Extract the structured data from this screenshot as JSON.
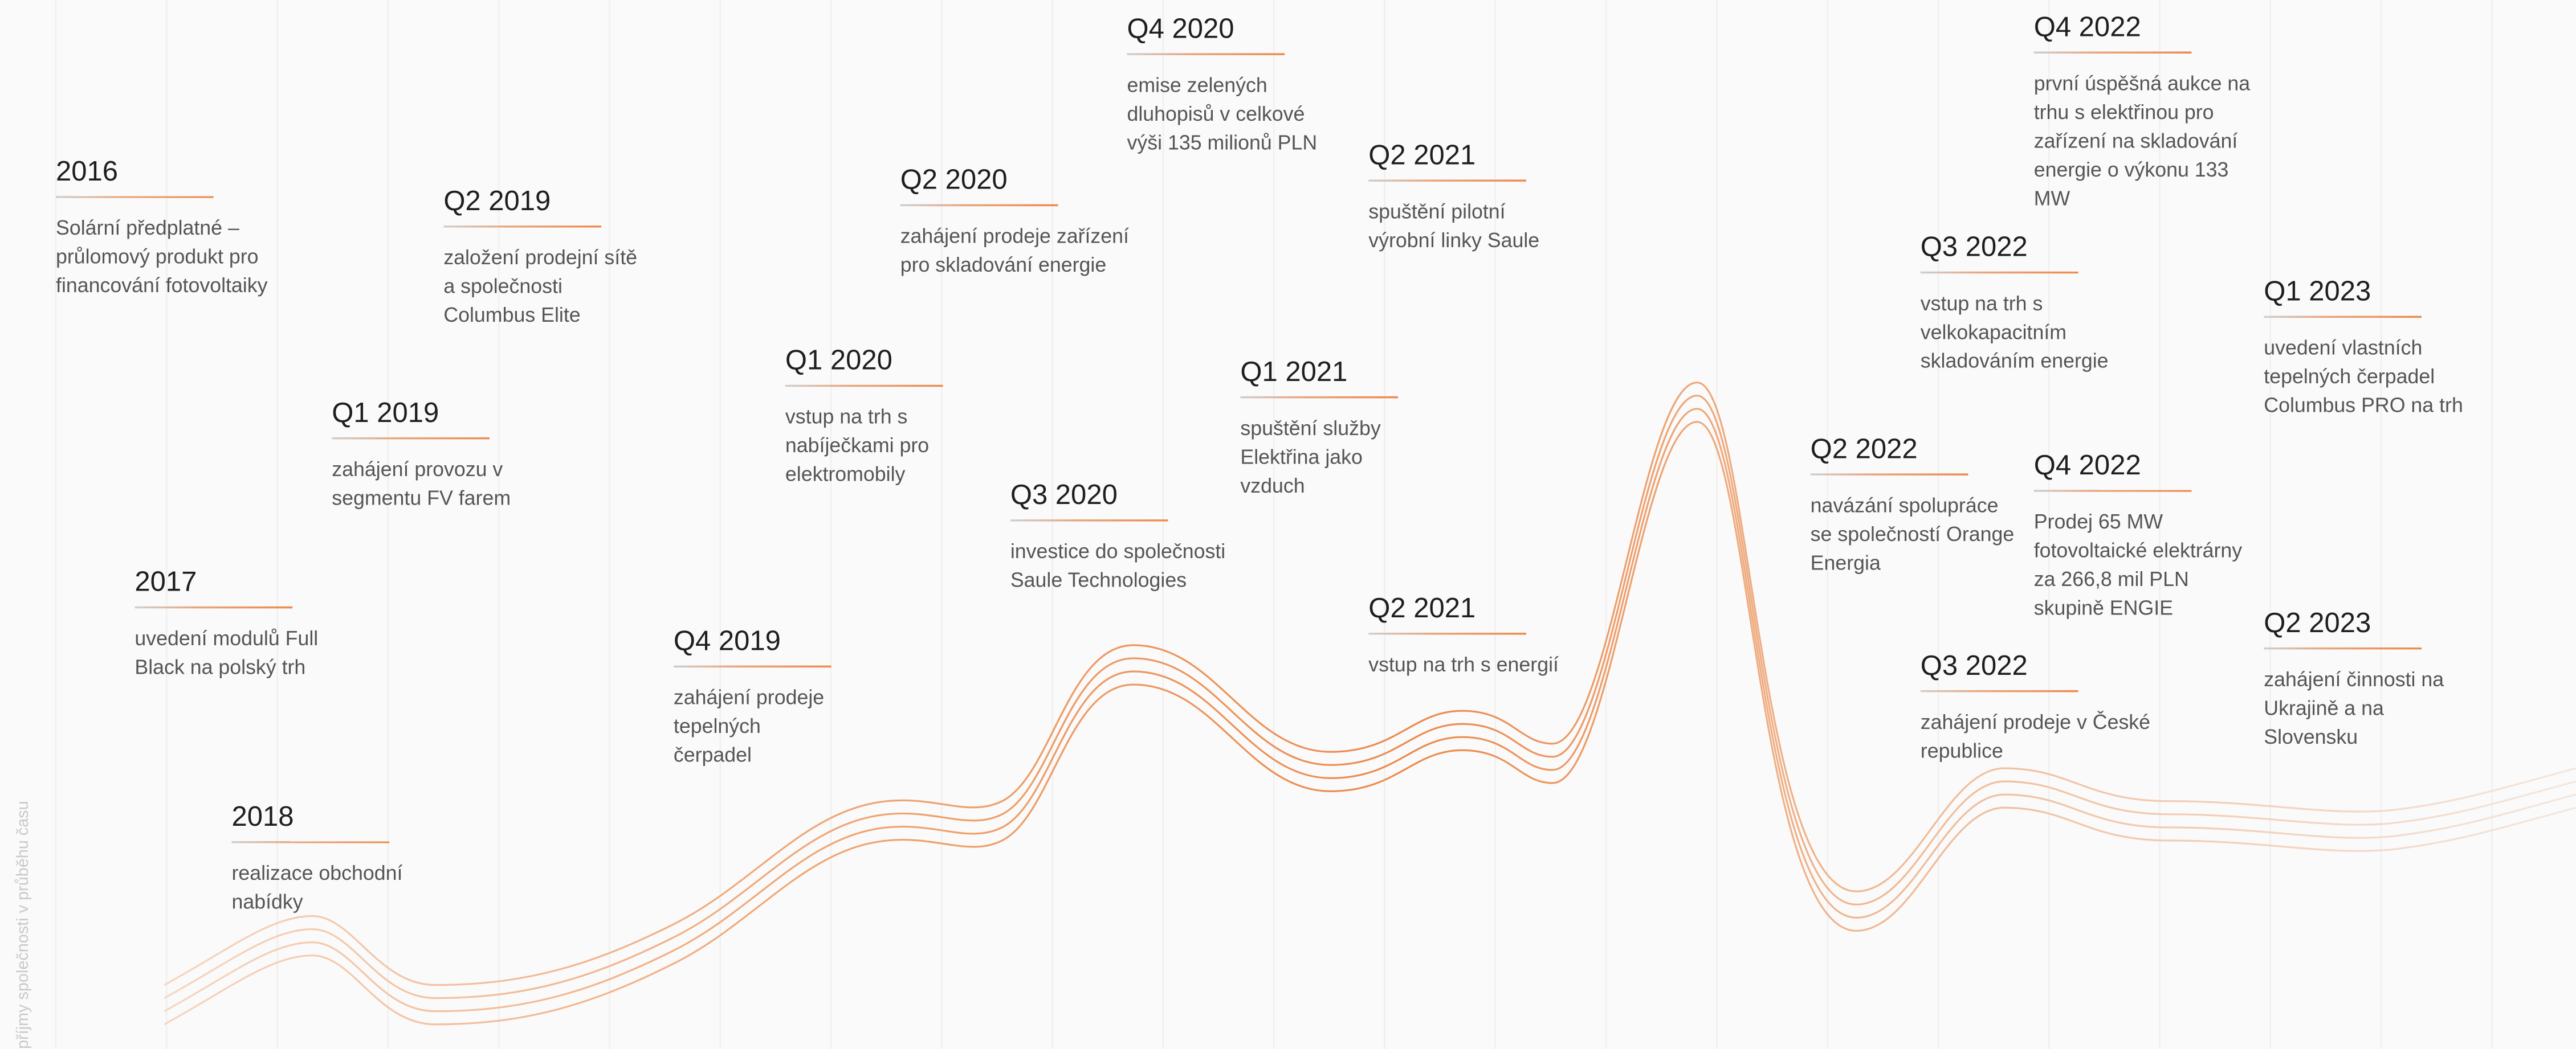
{
  "axis_label": "příjmy společnosti v průběhu času",
  "events": [
    {
      "period": "2016",
      "text": [
        "Solární předplatné –",
        "průlomový produkt pro",
        "financování fotovoltaiky"
      ]
    },
    {
      "period": "2017",
      "text": [
        "uvedení modulů Full",
        "Black na polský trh"
      ]
    },
    {
      "period": "2018",
      "text": [
        "realizace obchodní",
        "nabídky"
      ]
    },
    {
      "period": "Q1 2019",
      "text": [
        "zahájení provozu v",
        "segmentu FV farem"
      ]
    },
    {
      "period": "Q2 2019",
      "text": [
        "založení prodejní sítě",
        "a společnosti",
        "Columbus Elite"
      ]
    },
    {
      "period": "Q4 2019",
      "text": [
        "zahájení prodeje",
        "tepelných",
        "čerpadel"
      ]
    },
    {
      "period": "Q1 2020",
      "text": [
        "vstup na trh s",
        "nabíječkami pro",
        "elektromobily"
      ]
    },
    {
      "period": "Q2  2020",
      "text": [
        "zahájení prodeje zařízení",
        "pro skladování energie"
      ]
    },
    {
      "period": "Q3 2020",
      "text": [
        "investice do společnosti",
        "Saule Technologies"
      ]
    },
    {
      "period": "Q4  2020",
      "text": [
        "emise zelených",
        "dluhopisů v celkové",
        "výši 135 milionů PLN"
      ]
    },
    {
      "period": "Q1 2021",
      "text": [
        "spuštění služby",
        "Elektřina jako",
        "vzduch"
      ]
    },
    {
      "period": "Q2 2021",
      "text": [
        "spuštění pilotní",
        "výrobní linky Saule"
      ]
    },
    {
      "period": "Q2 2021",
      "text": [
        "vstup na trh s energií"
      ]
    },
    {
      "period": "Q2 2022",
      "text": [
        "navázání spolupráce",
        "se společností Orange",
        "Energia"
      ]
    },
    {
      "period": "Q3 2022",
      "text": [
        "vstup na trh s",
        "velkokapacitním",
        "skladováním energie"
      ]
    },
    {
      "period": "Q3 2022",
      "text": [
        "zahájení prodeje v České",
        "republice"
      ]
    },
    {
      "period": "Q4 2022",
      "text": [
        "první úspěšná aukce na",
        "trhu s elektřinou pro",
        "zařízení na skladování",
        "energie o výkonu 133",
        "MW"
      ]
    },
    {
      "period": "Q4 2022",
      "text": [
        "Prodej 65 MW",
        "fotovoltaické elektrárny",
        "za 266,8 mil PLN",
        "skupině ENGIE"
      ]
    },
    {
      "period": "Q1 2023",
      "text": [
        "uvedení vlastních",
        "tepelných čerpadel",
        "Columbus PRO na trh"
      ]
    },
    {
      "period": "Q2 2023",
      "text": [
        "zahájení činnosti na",
        "Ukrajině a na",
        "Slovensku"
      ]
    }
  ]
}
